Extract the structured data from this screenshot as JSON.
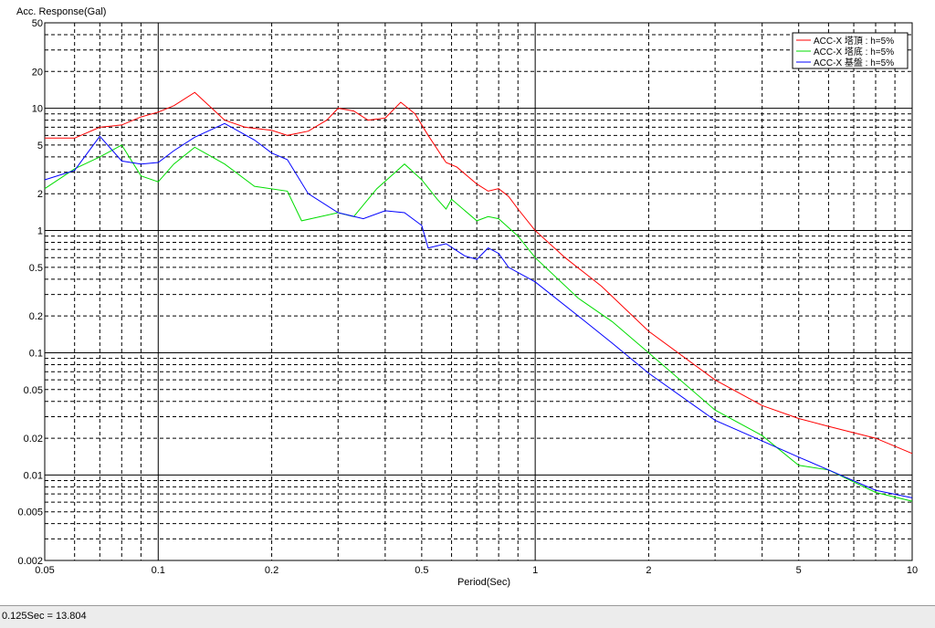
{
  "status_bar": {
    "text": "0.125Sec = 13.804"
  },
  "chart_data": {
    "type": "line",
    "title": "",
    "ylabel": "Acc. Response(Gal)",
    "xlabel": "Period(Sec)",
    "x_scale": "log",
    "y_scale": "log",
    "xlim": [
      0.05,
      10
    ],
    "ylim": [
      0.002,
      50
    ],
    "grid": true,
    "legend_position": "top-right",
    "x_ticks": [
      {
        "value": 0.05,
        "label": "0.05"
      },
      {
        "value": 0.1,
        "label": "0.1"
      },
      {
        "value": 0.2,
        "label": "0.2"
      },
      {
        "value": 0.5,
        "label": "0.5"
      },
      {
        "value": 1,
        "label": "1"
      },
      {
        "value": 2,
        "label": "2"
      },
      {
        "value": 5,
        "label": "5"
      },
      {
        "value": 10,
        "label": "10"
      }
    ],
    "y_ticks": [
      {
        "value": 0.002,
        "label": "0.002"
      },
      {
        "value": 0.005,
        "label": "0.005"
      },
      {
        "value": 0.01,
        "label": "0.01"
      },
      {
        "value": 0.02,
        "label": "0.02"
      },
      {
        "value": 0.05,
        "label": "0.05"
      },
      {
        "value": 0.1,
        "label": "0.1"
      },
      {
        "value": 0.2,
        "label": "0.2"
      },
      {
        "value": 0.5,
        "label": "0.5"
      },
      {
        "value": 1,
        "label": "1"
      },
      {
        "value": 2,
        "label": "2"
      },
      {
        "value": 5,
        "label": "5"
      },
      {
        "value": 10,
        "label": "10"
      },
      {
        "value": 20,
        "label": "20"
      },
      {
        "value": 50,
        "label": "50"
      }
    ],
    "series": [
      {
        "name": "ACC-X 塔頂 : h=5%",
        "color": "#ff0000",
        "points": [
          [
            0.05,
            5.7
          ],
          [
            0.06,
            5.7
          ],
          [
            0.07,
            7.0
          ],
          [
            0.08,
            7.3
          ],
          [
            0.09,
            8.5
          ],
          [
            0.1,
            9.3
          ],
          [
            0.11,
            10.5
          ],
          [
            0.125,
            13.5
          ],
          [
            0.15,
            8.0
          ],
          [
            0.17,
            7.0
          ],
          [
            0.2,
            6.6
          ],
          [
            0.22,
            6.0
          ],
          [
            0.25,
            6.5
          ],
          [
            0.28,
            8.0
          ],
          [
            0.3,
            10.0
          ],
          [
            0.33,
            9.5
          ],
          [
            0.36,
            8.0
          ],
          [
            0.4,
            8.3
          ],
          [
            0.44,
            11.2
          ],
          [
            0.48,
            9.0
          ],
          [
            0.52,
            6.0
          ],
          [
            0.58,
            3.6
          ],
          [
            0.62,
            3.3
          ],
          [
            0.7,
            2.4
          ],
          [
            0.75,
            2.1
          ],
          [
            0.8,
            2.2
          ],
          [
            0.85,
            1.9
          ],
          [
            0.9,
            1.5
          ],
          [
            1.0,
            1.0
          ],
          [
            1.2,
            0.6
          ],
          [
            1.5,
            0.35
          ],
          [
            2.0,
            0.15
          ],
          [
            3.0,
            0.06
          ],
          [
            4.0,
            0.037
          ],
          [
            5.0,
            0.029
          ],
          [
            6.0,
            0.025
          ],
          [
            8.0,
            0.02
          ],
          [
            10.0,
            0.015
          ]
        ]
      },
      {
        "name": "ACC-X 塔底 : h=5%",
        "color": "#00dd00",
        "points": [
          [
            0.05,
            2.2
          ],
          [
            0.06,
            3.2
          ],
          [
            0.07,
            4.0
          ],
          [
            0.08,
            5.0
          ],
          [
            0.09,
            2.8
          ],
          [
            0.1,
            2.5
          ],
          [
            0.11,
            3.5
          ],
          [
            0.125,
            4.8
          ],
          [
            0.15,
            3.5
          ],
          [
            0.18,
            2.3
          ],
          [
            0.22,
            2.1
          ],
          [
            0.24,
            1.2
          ],
          [
            0.3,
            1.4
          ],
          [
            0.33,
            1.3
          ],
          [
            0.38,
            2.2
          ],
          [
            0.45,
            3.5
          ],
          [
            0.5,
            2.6
          ],
          [
            0.55,
            1.8
          ],
          [
            0.58,
            1.5
          ],
          [
            0.6,
            1.8
          ],
          [
            0.7,
            1.2
          ],
          [
            0.75,
            1.3
          ],
          [
            0.8,
            1.25
          ],
          [
            0.9,
            0.9
          ],
          [
            1.0,
            0.6
          ],
          [
            1.3,
            0.28
          ],
          [
            1.6,
            0.18
          ],
          [
            2.0,
            0.1
          ],
          [
            3.0,
            0.034
          ],
          [
            4.0,
            0.021
          ],
          [
            5.0,
            0.012
          ],
          [
            6.0,
            0.011
          ],
          [
            8.0,
            0.0072
          ],
          [
            10.0,
            0.0061
          ]
        ]
      },
      {
        "name": "ACC-X 基盤 : h=5%",
        "color": "#0000ff",
        "points": [
          [
            0.05,
            2.6
          ],
          [
            0.06,
            3.1
          ],
          [
            0.07,
            5.9
          ],
          [
            0.08,
            3.7
          ],
          [
            0.09,
            3.5
          ],
          [
            0.1,
            3.6
          ],
          [
            0.11,
            4.5
          ],
          [
            0.125,
            5.8
          ],
          [
            0.15,
            7.5
          ],
          [
            0.18,
            5.5
          ],
          [
            0.2,
            4.3
          ],
          [
            0.22,
            3.8
          ],
          [
            0.25,
            2.0
          ],
          [
            0.3,
            1.4
          ],
          [
            0.35,
            1.25
          ],
          [
            0.4,
            1.45
          ],
          [
            0.45,
            1.4
          ],
          [
            0.5,
            1.1
          ],
          [
            0.52,
            0.72
          ],
          [
            0.58,
            0.78
          ],
          [
            0.65,
            0.62
          ],
          [
            0.7,
            0.58
          ],
          [
            0.75,
            0.72
          ],
          [
            0.8,
            0.65
          ],
          [
            0.85,
            0.5
          ],
          [
            1.0,
            0.38
          ],
          [
            1.3,
            0.2
          ],
          [
            1.6,
            0.12
          ],
          [
            2.0,
            0.068
          ],
          [
            3.0,
            0.028
          ],
          [
            4.0,
            0.019
          ],
          [
            5.0,
            0.014
          ],
          [
            6.0,
            0.011
          ],
          [
            8.0,
            0.0075
          ],
          [
            10.0,
            0.0065
          ]
        ]
      }
    ]
  }
}
